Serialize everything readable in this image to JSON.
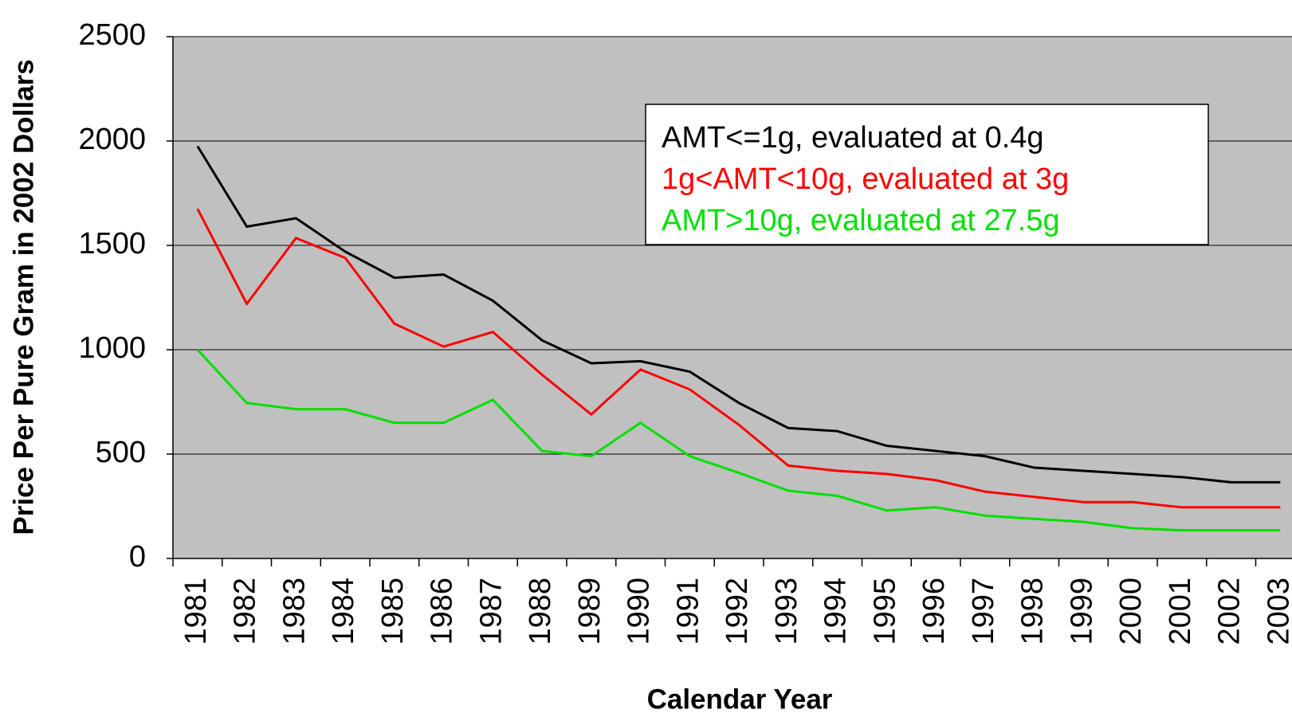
{
  "chart_data": {
    "type": "line",
    "x_label": "Calendar Year",
    "y_label": "Price Per Pure Gram in 2002 Dollars",
    "categories": [
      "1981",
      "1982",
      "1983",
      "1984",
      "1985",
      "1986",
      "1987",
      "1988",
      "1989",
      "1990",
      "1991",
      "1992",
      "1993",
      "1994",
      "1995",
      "1996",
      "1997",
      "1998",
      "1999",
      "2000",
      "2001",
      "2002",
      "2003"
    ],
    "series": [
      {
        "name": "AMT<=1g, evaluated at 0.4g",
        "color": "#000000",
        "values": [
          1975,
          1590,
          1630,
          1470,
          1345,
          1360,
          1235,
          1045,
          935,
          945,
          895,
          745,
          625,
          610,
          540,
          515,
          490,
          435,
          420,
          405,
          390,
          365,
          365
        ]
      },
      {
        "name": "1g<AMT<10g, evaluated at 3g",
        "color": "#ff0000",
        "values": [
          1675,
          1220,
          1535,
          1440,
          1125,
          1015,
          1085,
          880,
          690,
          905,
          810,
          640,
          445,
          420,
          405,
          375,
          320,
          295,
          270,
          270,
          245,
          245,
          245
        ]
      },
      {
        "name": "AMT>10g, evaluated at 27.5g",
        "color": "#00e000",
        "values": [
          1000,
          745,
          715,
          715,
          650,
          650,
          760,
          515,
          490,
          650,
          490,
          410,
          325,
          300,
          230,
          245,
          205,
          190,
          175,
          145,
          135,
          135,
          135
        ]
      }
    ],
    "ylim": [
      0,
      2500
    ],
    "yticks": [
      0,
      500,
      1000,
      1500,
      2000,
      2500
    ],
    "grid": true,
    "plot_background": "#c0c0c0",
    "legend": "top right"
  }
}
